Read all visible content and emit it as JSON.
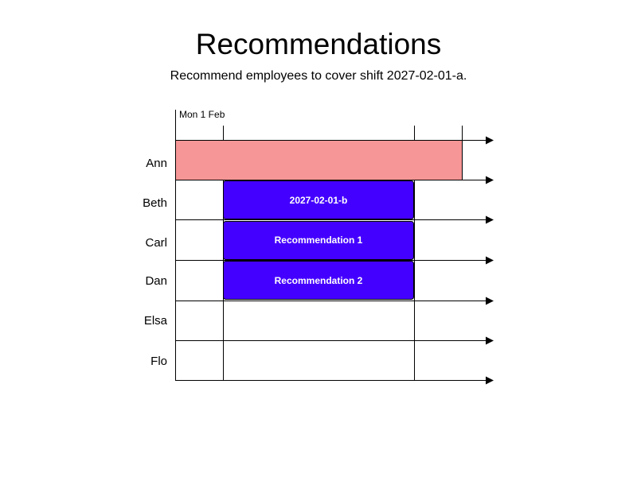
{
  "title": "Recommendations",
  "subtitle": "Recommend employees to cover shift 2027-02-01-a.",
  "timeline": {
    "date_label": "Mon 1 Feb"
  },
  "employees": [
    "Ann",
    "Beth",
    "Carl",
    "Dan",
    "Elsa",
    "Flo"
  ],
  "shifts": [
    {
      "label": "",
      "employee": "Ann",
      "kind": "target",
      "color": "#f79696"
    },
    {
      "label": "2027-02-01-b",
      "employee": "Beth",
      "kind": "existing",
      "color": "#4400ff"
    },
    {
      "label": "Recommendation 1",
      "employee": "Carl",
      "kind": "recommendation",
      "color": "#4400ff"
    },
    {
      "label": "Recommendation 2",
      "employee": "Dan",
      "kind": "recommendation",
      "color": "#4400ff"
    }
  ],
  "colors": {
    "target_fill": "#f79696",
    "shift_fill": "#4400ff",
    "shift_text": "#ffffff",
    "line": "#000000"
  }
}
